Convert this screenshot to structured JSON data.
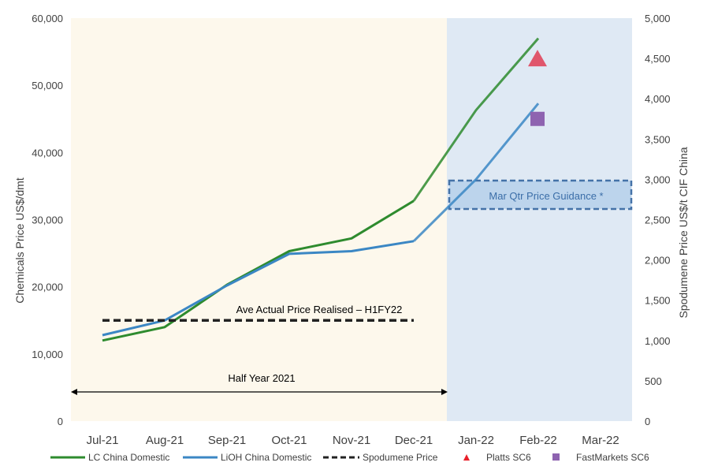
{
  "chart_data": {
    "type": "line",
    "categories": [
      "Jul-21",
      "Aug-21",
      "Sep-21",
      "Oct-21",
      "Nov-21",
      "Dec-21",
      "Jan-22",
      "Feb-22",
      "Mar-22"
    ],
    "y_left": {
      "label": "Chemicals Price US$/dmt",
      "range": [
        0,
        60000
      ],
      "ticks": [
        "0",
        "10,000",
        "20,000",
        "30,000",
        "40,000",
        "50,000",
        "60,000"
      ]
    },
    "y_right": {
      "label": "Spodumene  Price US$/t CIF China",
      "range": [
        0,
        5000
      ],
      "ticks": [
        "0",
        "500",
        "1,000",
        "1,500",
        "2,000",
        "2,500",
        "3,000",
        "3,500",
        "4,000",
        "4,500",
        "5,000"
      ]
    },
    "series": [
      {
        "name": "LC China Domestic",
        "axis": "left",
        "color": "#2e8b2e",
        "values": [
          12000,
          14000,
          20300,
          25300,
          27200,
          32800,
          46300,
          57000,
          null
        ]
      },
      {
        "name": "LiOH China Domestic",
        "axis": "left",
        "color": "#3b87c4",
        "values": [
          12800,
          15000,
          20200,
          24900,
          25300,
          26800,
          36000,
          47300,
          null
        ]
      },
      {
        "name": "Spodumene Price",
        "axis": "right",
        "color": "#222222",
        "style": "dashed",
        "values": [
          1250,
          1250,
          1250,
          1250,
          1250,
          1250,
          null,
          null,
          null
        ]
      },
      {
        "name": "Platts SC6",
        "axis": "right",
        "color": "#e0566c",
        "marker": "triangle",
        "points": [
          {
            "x": "Feb-22",
            "y": 4500
          }
        ]
      },
      {
        "name": "FastMarkets SC6",
        "axis": "right",
        "color": "#8e63b0",
        "marker": "square",
        "points": [
          {
            "x": "Feb-22",
            "y": 3750
          }
        ]
      }
    ],
    "guidance_band": {
      "label": "Mar Qtr Price Guidance *",
      "axis": "right",
      "y_range": [
        2650,
        2950
      ]
    },
    "annotations": {
      "ave_price": "Ave Actual Price Realised – H1FY22",
      "half_year": "Half Year 2021"
    },
    "regions": {
      "half_year_color": "#fdf8ec",
      "forecast_color": "#dfe9f4"
    },
    "legend_position": "bottom"
  }
}
